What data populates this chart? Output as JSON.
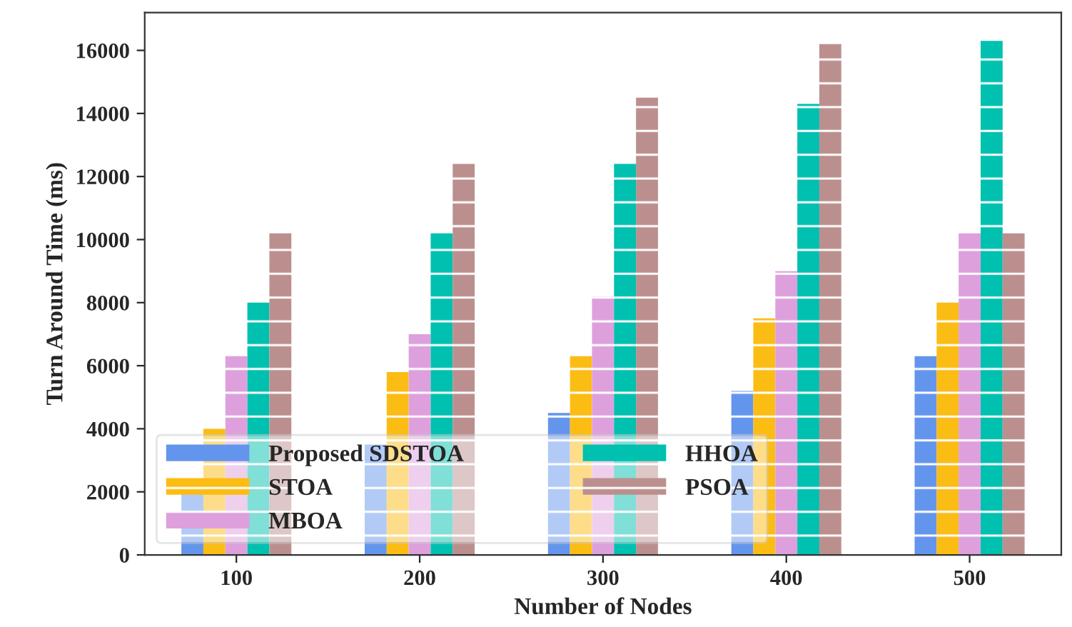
{
  "chart_data": {
    "type": "bar",
    "xlabel": "Number of Nodes",
    "ylabel": "Turn Around Time (ms)",
    "categories": [
      "100",
      "200",
      "300",
      "400",
      "500"
    ],
    "series": [
      {
        "name": "Proposed SDSTOA",
        "color": "#6495ed",
        "values": [
          2000,
          3500,
          4500,
          5200,
          6300
        ]
      },
      {
        "name": "STOA",
        "color": "#fbbc14",
        "values": [
          4000,
          5800,
          6300,
          7500,
          8000
        ]
      },
      {
        "name": "MBOA",
        "color": "#dda0dd",
        "values": [
          6300,
          7000,
          8200,
          9000,
          10200
        ]
      },
      {
        "name": "HHOA",
        "color": "#00c0b0",
        "values": [
          8000,
          10200,
          12400,
          14300,
          16300
        ]
      },
      {
        "name": "PSOA",
        "color": "#bc8f8f",
        "values": [
          10200,
          12400,
          14500,
          16200,
          10200
        ]
      }
    ],
    "ylim": [
      0,
      17200
    ],
    "yticks": [
      0,
      2000,
      4000,
      6000,
      8000,
      10000,
      12000,
      14000,
      16000
    ],
    "grid": false,
    "legend": "bottom left"
  }
}
